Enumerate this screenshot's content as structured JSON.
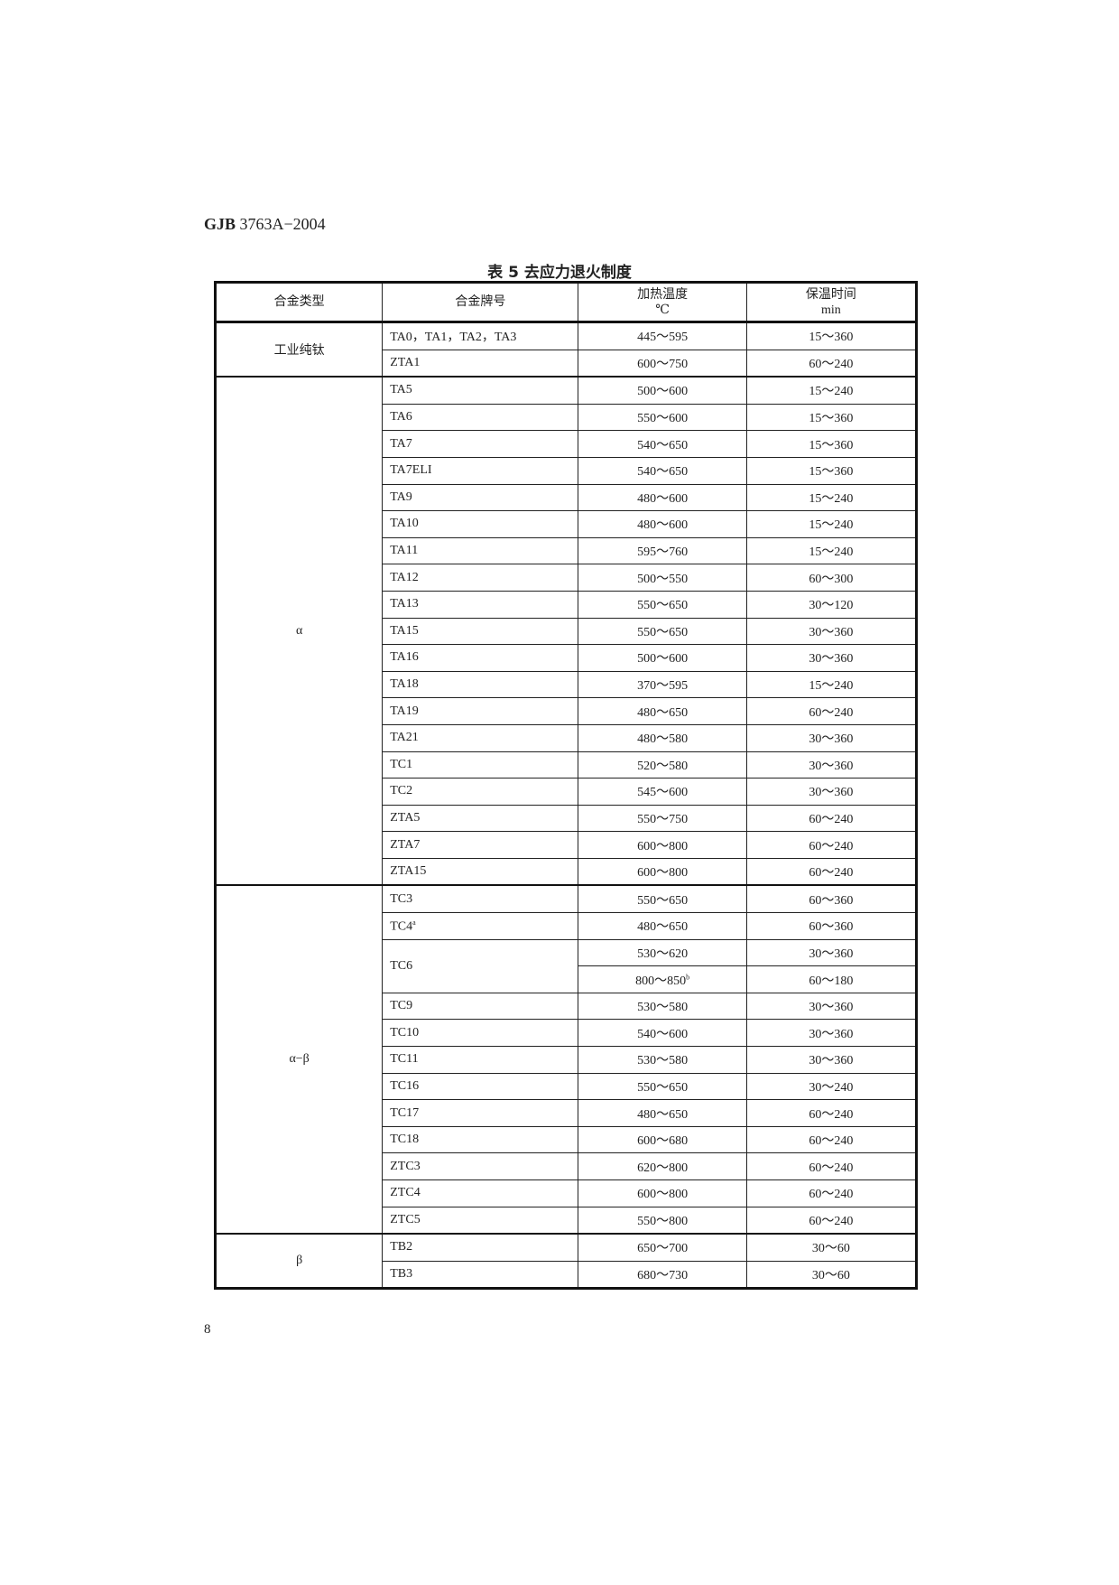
{
  "header": {
    "standard_bold": "GJB",
    "standard_rest": " 3763A−2004"
  },
  "table": {
    "caption": "表 5   去应力退火制度",
    "columns": [
      "合金类型",
      "合金牌号",
      "加热温度",
      "保温时间"
    ],
    "units": [
      "",
      "",
      "℃",
      "min"
    ],
    "groups": [
      {
        "type": "工业纯钛",
        "rows": [
          {
            "grade": "TA0，TA1，TA2，TA3",
            "temp": "445～595",
            "time": "15～360"
          },
          {
            "grade": "ZTA1",
            "temp": "600～750",
            "time": "60～240"
          }
        ]
      },
      {
        "type": "α",
        "rows": [
          {
            "grade": "TA5",
            "temp": "500～600",
            "time": "15～240"
          },
          {
            "grade": "TA6",
            "temp": "550～600",
            "time": "15～360"
          },
          {
            "grade": "TA7",
            "temp": "540～650",
            "time": "15～360"
          },
          {
            "grade": "TA7ELI",
            "temp": "540～650",
            "time": "15～360"
          },
          {
            "grade": "TA9",
            "temp": "480～600",
            "time": "15～240"
          },
          {
            "grade": "TA10",
            "temp": "480～600",
            "time": "15～240"
          },
          {
            "grade": "TA11",
            "temp": "595～760",
            "time": "15～240"
          },
          {
            "grade": "TA12",
            "temp": "500～550",
            "time": "60～300"
          },
          {
            "grade": "TA13",
            "temp": "550～650",
            "time": "30～120"
          },
          {
            "grade": "TA15",
            "temp": "550～650",
            "time": "30～360"
          },
          {
            "grade": "TA16",
            "temp": "500～600",
            "time": "30～360"
          },
          {
            "grade": "TA18",
            "temp": "370～595",
            "time": "15～240"
          },
          {
            "grade": "TA19",
            "temp": "480～650",
            "time": "60～240"
          },
          {
            "grade": "TA21",
            "temp": "480～580",
            "time": "30～360"
          },
          {
            "grade": "TC1",
            "temp": "520～580",
            "time": "30～360"
          },
          {
            "grade": "TC2",
            "temp": "545～600",
            "time": "30～360"
          },
          {
            "grade": "ZTA5",
            "temp": "550～750",
            "time": "60～240"
          },
          {
            "grade": "ZTA7",
            "temp": "600～800",
            "time": "60～240"
          },
          {
            "grade": "ZTA15",
            "temp": "600～800",
            "time": "60～240"
          }
        ]
      },
      {
        "type": "α−β",
        "rows": [
          {
            "grade": "TC3",
            "temp": "550～650",
            "time": "60～360"
          },
          {
            "grade": "TC4",
            "grade_sup": "a",
            "temp": "480～650",
            "time": "60～360"
          },
          {
            "grade": "TC6",
            "span": 2,
            "temp": "530～620",
            "time": "30～360"
          },
          {
            "temp": "800～850",
            "temp_sup": "b",
            "time": "60～180"
          },
          {
            "grade": "TC9",
            "temp": "530～580",
            "time": "30～360"
          },
          {
            "grade": "TC10",
            "temp": "540～600",
            "time": "30～360"
          },
          {
            "grade": "TC11",
            "temp": "530～580",
            "time": "30～360"
          },
          {
            "grade": "TC16",
            "temp": "550～650",
            "time": "30～240"
          },
          {
            "grade": "TC17",
            "temp": "480～650",
            "time": "60～240"
          },
          {
            "grade": "TC18",
            "temp": "600～680",
            "time": "60～240"
          },
          {
            "grade": "ZTC3",
            "temp": "620～800",
            "time": "60～240"
          },
          {
            "grade": "ZTC4",
            "temp": "600～800",
            "time": "60～240"
          },
          {
            "grade": "ZTC5",
            "temp": "550～800",
            "time": "60～240"
          }
        ]
      },
      {
        "type": "β",
        "rows": [
          {
            "grade": "TB2",
            "temp": "650～700",
            "time": "30～60"
          },
          {
            "grade": "TB3",
            "temp": "680～730",
            "time": "30～60"
          }
        ]
      }
    ]
  },
  "footer": {
    "page_number": "8"
  }
}
